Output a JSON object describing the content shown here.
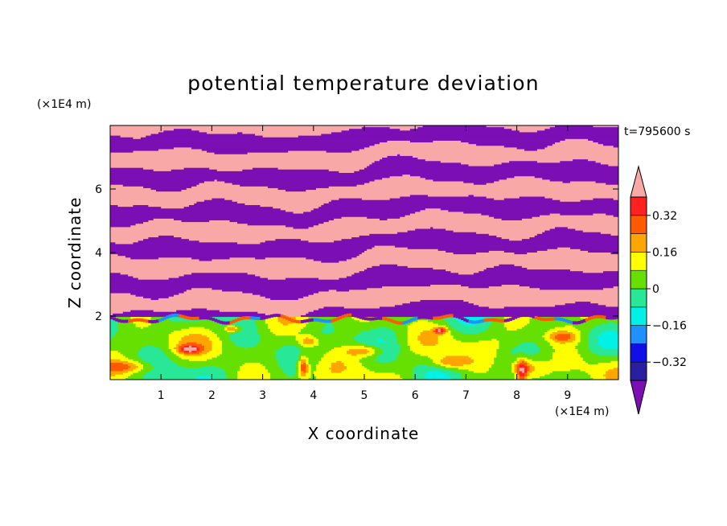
{
  "chart_data": {
    "type": "heatmap",
    "title": "potential temperature deviation",
    "xlabel": "X coordinate",
    "ylabel": "Z coordinate",
    "x_unit": "(×1E4 m)",
    "z_unit": "(×1E4 m)",
    "time_label": "t=795600 s",
    "x_ticks": [
      1,
      2,
      3,
      4,
      5,
      6,
      7,
      8,
      9
    ],
    "z_ticks": [
      2,
      4,
      6
    ],
    "xlim": [
      0,
      10
    ],
    "zlim": [
      0,
      8
    ],
    "colorbar": {
      "levels": [
        -0.4,
        -0.32,
        -0.24,
        -0.16,
        -0.08,
        0,
        0.08,
        0.16,
        0.24,
        0.32,
        0.4
      ],
      "labels": [
        "0.32",
        "0.16",
        "0",
        "−0.16",
        "−0.32"
      ],
      "label_values": [
        0.32,
        0.16,
        0,
        -0.16,
        -0.32
      ],
      "colors_low_to_high": [
        "#7B0FB4",
        "#2A1FA0",
        "#1010E6",
        "#1E90FF",
        "#00F2E6",
        "#28E898",
        "#66E000",
        "#FFFF00",
        "#FFA500",
        "#FF5A00",
        "#FF2020",
        "#F9A8A8"
      ],
      "extend": "both"
    },
    "field_description": [
      {
        "z_range": [
          2.0,
          7.9
        ],
        "pattern": "alternating",
        "values": [
          -0.45,
          0.45
        ]
      },
      {
        "z_range": [
          0.0,
          1.8
        ],
        "pattern": "mixed",
        "values": [
          -0.12,
          0.0,
          0.05,
          0.12,
          0.2
        ]
      }
    ]
  }
}
